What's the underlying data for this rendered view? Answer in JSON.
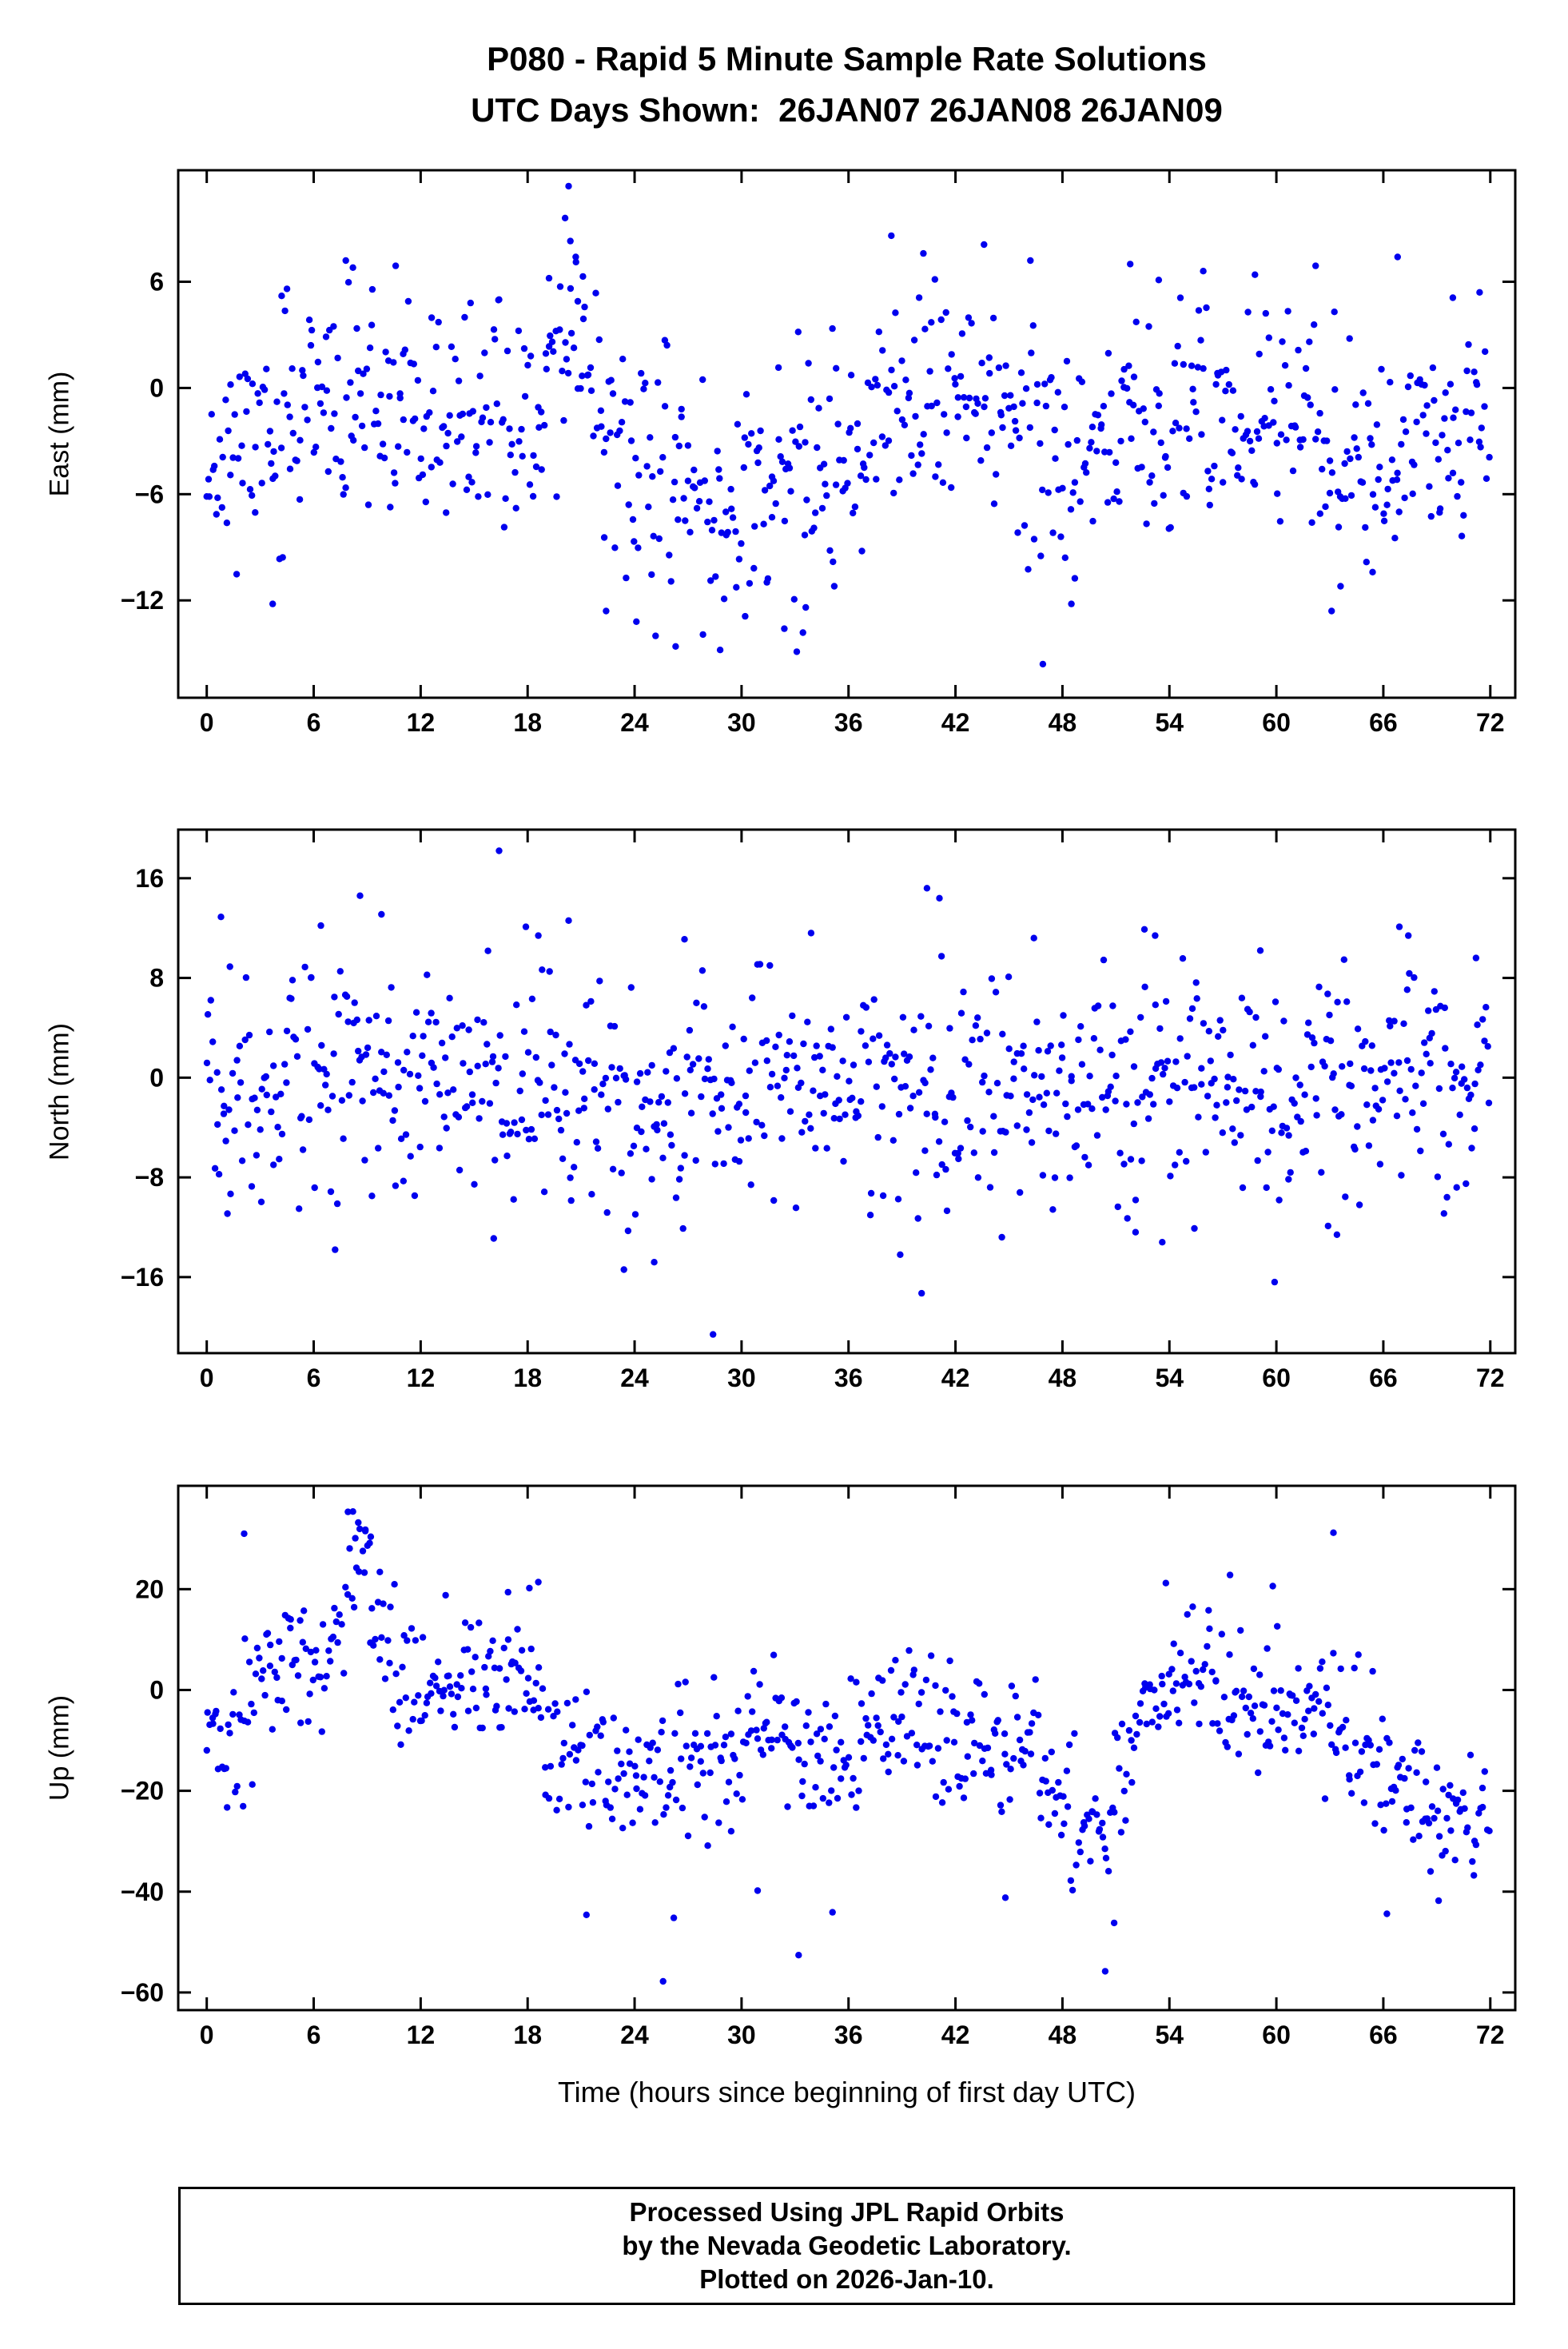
{
  "title": {
    "line1": "P080 - Rapid 5 Minute Sample Rate Solutions",
    "line2": "UTC Days Shown:  26JAN07 26JAN08 26JAN09"
  },
  "xaxis": {
    "label": "Time (hours since beginning of first day UTC)",
    "ticks": [
      0,
      6,
      12,
      18,
      24,
      30,
      36,
      42,
      48,
      54,
      60,
      66,
      72
    ],
    "lim": [
      -1.6,
      73.4
    ]
  },
  "footer": {
    "line1": "Processed Using JPL Rapid Orbits",
    "line2": "by the Nevada Geodetic Laboratory.",
    "line3": "Plotted on 2026-Jan-10."
  },
  "marker": {
    "color": "#0000ee",
    "radius": 4.2
  },
  "chart_data": [
    {
      "type": "scatter",
      "title": "East component",
      "ylabel": "East (mm)",
      "units": "mm",
      "yticks": [
        6,
        0,
        -6,
        -12
      ],
      "ylim": [
        -17.5,
        12.3
      ],
      "xlim": [
        -1.6,
        73.4
      ],
      "n": 780,
      "seed": 11,
      "trend": {
        "x": [
          0,
          2,
          4,
          6,
          8,
          10,
          12,
          14,
          16,
          18,
          19.5,
          20.5,
          21.5,
          23,
          25,
          27,
          29,
          31,
          33,
          35,
          37,
          39,
          41,
          43,
          45,
          47,
          49,
          51,
          53,
          55,
          57,
          59,
          61,
          62.5,
          64,
          66,
          68,
          70,
          72
        ],
        "mean": [
          -3.5,
          -3.5,
          -2.5,
          -1.5,
          -1,
          -1.5,
          -2,
          -2.5,
          -2.5,
          -1.5,
          1.5,
          3.5,
          0.5,
          -3.5,
          -5.5,
          -6,
          -6,
          -5.5,
          -6,
          -4.5,
          -3,
          -1.5,
          -1,
          -1,
          -2,
          -3,
          -3,
          -2.5,
          -2,
          -1.5,
          -1.5,
          -1,
          -1,
          -2.5,
          -4.5,
          -4,
          -3.5,
          -3,
          -2.5
        ],
        "sigma": [
          3,
          3,
          3,
          3,
          3,
          2.8,
          2.8,
          2.8,
          3,
          3.2,
          3.5,
          3.2,
          3.2,
          3.2,
          3.5,
          3.8,
          3.8,
          3.6,
          3.8,
          3.4,
          3.2,
          3.2,
          3.2,
          3.2,
          3.4,
          3.4,
          3.2,
          3,
          3,
          3,
          3,
          2.8,
          2.8,
          3.4,
          3.4,
          3.2,
          3,
          2.8,
          2.8
        ]
      },
      "outliers": [
        [
          4.2,
          5.2
        ],
        [
          4.5,
          5.6
        ],
        [
          7.8,
          7.2
        ],
        [
          8.2,
          6.8
        ],
        [
          10.6,
          6.9
        ],
        [
          14.8,
          4.8
        ],
        [
          19.2,
          6.2
        ],
        [
          20.1,
          9.6
        ],
        [
          20.3,
          11.4
        ],
        [
          20.4,
          8.3
        ],
        [
          20.7,
          7.4
        ],
        [
          21.1,
          6.3
        ],
        [
          38.4,
          8.6
        ],
        [
          40.2,
          7.6
        ],
        [
          43.6,
          8.1
        ],
        [
          46.2,
          7.2
        ],
        [
          51.8,
          7.0
        ],
        [
          53.4,
          6.1
        ],
        [
          55.9,
          6.6
        ],
        [
          58.8,
          6.4
        ],
        [
          62.2,
          6.9
        ],
        [
          66.8,
          7.4
        ],
        [
          69.9,
          5.1
        ],
        [
          71.4,
          5.4
        ],
        [
          3.7,
          -12.2
        ],
        [
          22.4,
          -12.6
        ],
        [
          24.1,
          -13.2
        ],
        [
          26.3,
          -14.6
        ],
        [
          28.8,
          -14.8
        ],
        [
          30.2,
          -12.9
        ],
        [
          32.4,
          -13.6
        ],
        [
          33.1,
          -14.9
        ],
        [
          33.6,
          -12.4
        ],
        [
          35.2,
          -11.2
        ],
        [
          46.9,
          -15.6
        ],
        [
          48.5,
          -12.2
        ],
        [
          63.1,
          -12.6
        ],
        [
          63.6,
          -11.2
        ],
        [
          65.4,
          -10.4
        ]
      ]
    },
    {
      "type": "scatter",
      "title": "North component",
      "ylabel": "North (mm)",
      "units": "mm",
      "yticks": [
        16,
        8,
        0,
        -8,
        -16
      ],
      "ylim": [
        -22.1,
        19.9
      ],
      "xlim": [
        -1.6,
        73.4
      ],
      "n": 780,
      "seed": 22,
      "trend": {
        "x": [
          0,
          3,
          6,
          8,
          10,
          13,
          16,
          19,
          22,
          25,
          28,
          31,
          34,
          37,
          40,
          43,
          46,
          49,
          52,
          55,
          58,
          61,
          64,
          67,
          70,
          72
        ],
        "mean": [
          0,
          -1,
          0.5,
          1.5,
          -1,
          -1.5,
          -0.5,
          0.5,
          -1.5,
          -2,
          -1.5,
          -0.5,
          -1,
          -1,
          -0.5,
          0,
          -0.5,
          -1,
          -1.5,
          0.5,
          -1,
          -1.5,
          -0.5,
          0.5,
          0,
          0.5
        ],
        "sigma": [
          4.5,
          4.2,
          4.5,
          4.8,
          4.2,
          4.2,
          4.5,
          4.2,
          4.5,
          4.5,
          4.2,
          4.0,
          4.0,
          4.2,
          4.5,
          4.2,
          4.0,
          4.2,
          4.8,
          4.5,
          4.2,
          4.2,
          4.5,
          4.2,
          4.0,
          4.0
        ]
      },
      "outliers": [
        [
          0.8,
          12.9
        ],
        [
          1.3,
          8.9
        ],
        [
          6.4,
          12.2
        ],
        [
          8.6,
          14.6
        ],
        [
          9.8,
          13.1
        ],
        [
          16.4,
          18.2
        ],
        [
          17.9,
          12.1
        ],
        [
          18.6,
          11.4
        ],
        [
          20.3,
          12.6
        ],
        [
          26.8,
          11.1
        ],
        [
          33.9,
          11.6
        ],
        [
          40.4,
          15.2
        ],
        [
          41.1,
          14.4
        ],
        [
          46.4,
          11.2
        ],
        [
          52.6,
          11.9
        ],
        [
          53.2,
          11.4
        ],
        [
          59.1,
          10.2
        ],
        [
          66.9,
          12.1
        ],
        [
          67.4,
          11.4
        ],
        [
          71.2,
          9.6
        ],
        [
          7.2,
          -13.8
        ],
        [
          16.1,
          -12.9
        ],
        [
          23.4,
          -15.4
        ],
        [
          25.1,
          -14.8
        ],
        [
          28.4,
          -20.6
        ],
        [
          38.9,
          -14.2
        ],
        [
          40.1,
          -17.3
        ],
        [
          44.6,
          -12.8
        ],
        [
          52.1,
          -12.4
        ],
        [
          53.6,
          -13.2
        ],
        [
          55.4,
          -12.1
        ],
        [
          59.9,
          -16.4
        ],
        [
          62.9,
          -11.9
        ],
        [
          63.4,
          -12.6
        ],
        [
          69.4,
          -10.9
        ]
      ]
    },
    {
      "type": "scatter",
      "title": "Up component",
      "ylabel": "Up (mm)",
      "units": "mm",
      "yticks": [
        20,
        0,
        -20,
        -40,
        -60
      ],
      "ylim": [
        -63.5,
        40.5
      ],
      "xlim": [
        -1.6,
        73.4
      ],
      "n": 760,
      "seed": 33,
      "trend": {
        "x": [
          0,
          1,
          2,
          3,
          4,
          5,
          6,
          7,
          8,
          8.6,
          9.5,
          10.5,
          11.5,
          12.5,
          14,
          15.5,
          17,
          18,
          19,
          20.5,
          22,
          23.5,
          25,
          26.5,
          28,
          29.5,
          31,
          32.5,
          34,
          35.5,
          37,
          38.5,
          40,
          41.5,
          43,
          44.5,
          46,
          47.5,
          49,
          50.2,
          51,
          52,
          53.5,
          55,
          56.5,
          58,
          59.5,
          61,
          62.5,
          64,
          65.5,
          67,
          68.5,
          70,
          71,
          72
        ],
        "mean": [
          -8,
          -12,
          -8,
          2,
          7,
          3,
          4,
          10,
          20,
          26,
          15,
          6,
          -2,
          0,
          -2,
          1,
          4,
          -2,
          -10,
          -14,
          -16,
          -18,
          -19,
          -18,
          -14,
          -15,
          -6,
          -7,
          -14,
          -15,
          -10,
          -6,
          -3,
          -6,
          -11,
          -10,
          -12,
          -18,
          -26,
          -30,
          -22,
          -8,
          -2,
          3,
          1,
          -3,
          -6,
          -1,
          -4,
          -9,
          -11,
          -20,
          -24,
          -24,
          -25,
          -22
        ],
        "sigma": [
          7,
          7,
          7,
          7,
          7,
          7,
          7,
          7,
          7,
          6,
          7,
          7,
          7,
          6,
          6,
          7,
          7,
          7,
          7,
          7,
          7,
          8,
          8,
          8,
          7,
          7,
          7,
          7,
          8,
          8,
          7,
          7,
          7,
          7,
          7,
          7,
          7,
          7,
          7,
          6,
          7,
          7,
          7,
          6,
          6,
          7,
          7,
          7,
          7,
          7,
          7,
          6,
          5,
          5,
          5,
          5
        ]
      },
      "outliers": [
        [
          2.1,
          31.0
        ],
        [
          8.2,
          35.4
        ],
        [
          8.5,
          33.2
        ],
        [
          8.9,
          31.8
        ],
        [
          9.2,
          30.4
        ],
        [
          13.4,
          18.8
        ],
        [
          16.9,
          19.4
        ],
        [
          18.1,
          20.2
        ],
        [
          18.6,
          21.4
        ],
        [
          53.8,
          21.2
        ],
        [
          57.4,
          22.8
        ],
        [
          59.8,
          20.6
        ],
        [
          63.2,
          31.2
        ],
        [
          21.3,
          -44.6
        ],
        [
          25.6,
          -57.8
        ],
        [
          26.2,
          -45.2
        ],
        [
          30.9,
          -39.8
        ],
        [
          33.2,
          -52.6
        ],
        [
          35.1,
          -44.1
        ],
        [
          44.8,
          -41.2
        ],
        [
          50.4,
          -55.8
        ],
        [
          50.9,
          -46.2
        ],
        [
          66.2,
          -44.4
        ],
        [
          69.1,
          -41.8
        ]
      ]
    }
  ]
}
